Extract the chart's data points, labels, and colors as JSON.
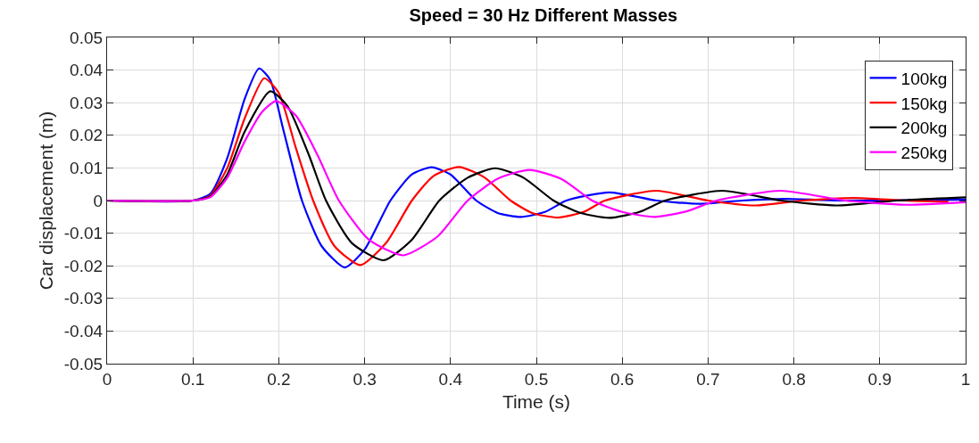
{
  "chart_data": {
    "type": "line",
    "title": "Speed = 30 Hz Different Masses",
    "xlabel": "Time (s)",
    "ylabel": "Car displacement (m)",
    "xlim": [
      0,
      1
    ],
    "xticks": [
      0,
      0.1,
      0.2,
      0.3,
      0.4,
      0.5,
      0.6,
      0.7,
      0.8,
      0.9,
      1
    ],
    "ylim": [
      -0.05,
      0.05
    ],
    "yticks": [
      -0.05,
      -0.04,
      -0.03,
      -0.02,
      -0.01,
      0,
      0.01,
      0.02,
      0.03,
      0.04,
      0.05
    ],
    "grid": true,
    "legend": "top right",
    "marker": "none",
    "line_style": "solid",
    "series": [
      {
        "name": "100kg",
        "color": "#0000ff",
        "x": [
          0,
          0.1,
          0.12,
          0.14,
          0.16,
          0.177,
          0.19,
          0.205,
          0.227,
          0.25,
          0.277,
          0.3,
          0.33,
          0.355,
          0.378,
          0.4,
          0.43,
          0.455,
          0.482,
          0.51,
          0.535,
          0.585,
          0.64,
          0.69,
          0.74,
          0.79,
          0.85,
          0.9,
          1.0
        ],
        "values": [
          0,
          0,
          0.002,
          0.013,
          0.031,
          0.0405,
          0.037,
          0.022,
          0,
          -0.014,
          -0.0205,
          -0.015,
          0,
          0.008,
          0.0102,
          0.008,
          0,
          -0.0038,
          -0.005,
          -0.0035,
          0,
          0.0025,
          0,
          -0.001,
          0,
          0.0005,
          0,
          0,
          0.0003
        ]
      },
      {
        "name": "150kg",
        "color": "#ff0000",
        "x": [
          0,
          0.1,
          0.12,
          0.14,
          0.16,
          0.183,
          0.2,
          0.22,
          0.24,
          0.265,
          0.295,
          0.325,
          0.355,
          0.38,
          0.41,
          0.44,
          0.47,
          0.495,
          0.525,
          0.555,
          0.58,
          0.64,
          0.7,
          0.755,
          0.81,
          0.87,
          0.93,
          0.98
        ],
        "values": [
          0,
          0,
          0.0015,
          0.01,
          0.025,
          0.0375,
          0.033,
          0.016,
          0,
          -0.014,
          -0.0198,
          -0.013,
          0,
          0.0075,
          0.0103,
          0.007,
          0,
          -0.0038,
          -0.0052,
          -0.0035,
          0,
          0.003,
          0,
          -0.0015,
          0,
          0.0008,
          0,
          -0.0003
        ]
      },
      {
        "name": "200kg",
        "color": "#000000",
        "x": [
          0,
          0.1,
          0.12,
          0.14,
          0.16,
          0.19,
          0.21,
          0.235,
          0.255,
          0.285,
          0.322,
          0.355,
          0.387,
          0.42,
          0.452,
          0.485,
          0.52,
          0.55,
          0.585,
          0.62,
          0.65,
          0.717,
          0.785,
          0.85,
          0.92,
          1.0
        ],
        "values": [
          0,
          0,
          0.0012,
          0.008,
          0.021,
          0.0335,
          0.029,
          0.014,
          0,
          -0.013,
          -0.0183,
          -0.012,
          0,
          0.007,
          0.0099,
          0.007,
          0,
          -0.0037,
          -0.0053,
          -0.0035,
          0,
          0.003,
          0,
          -0.0015,
          0,
          0.001
        ]
      },
      {
        "name": "250kg",
        "color": "#ff00ff",
        "x": [
          0,
          0.1,
          0.12,
          0.14,
          0.16,
          0.18,
          0.197,
          0.22,
          0.245,
          0.27,
          0.305,
          0.345,
          0.385,
          0.42,
          0.455,
          0.492,
          0.53,
          0.565,
          0.6,
          0.638,
          0.675,
          0.71,
          0.785,
          0.86,
          0.93,
          1.0
        ],
        "values": [
          0,
          0,
          0.001,
          0.007,
          0.018,
          0.027,
          0.0305,
          0.026,
          0.014,
          0,
          -0.012,
          -0.0168,
          -0.011,
          0,
          0.0067,
          0.0094,
          0.0065,
          0,
          -0.0035,
          -0.005,
          -0.0033,
          0,
          0.003,
          0,
          -0.0013,
          -0.0005
        ]
      }
    ]
  }
}
